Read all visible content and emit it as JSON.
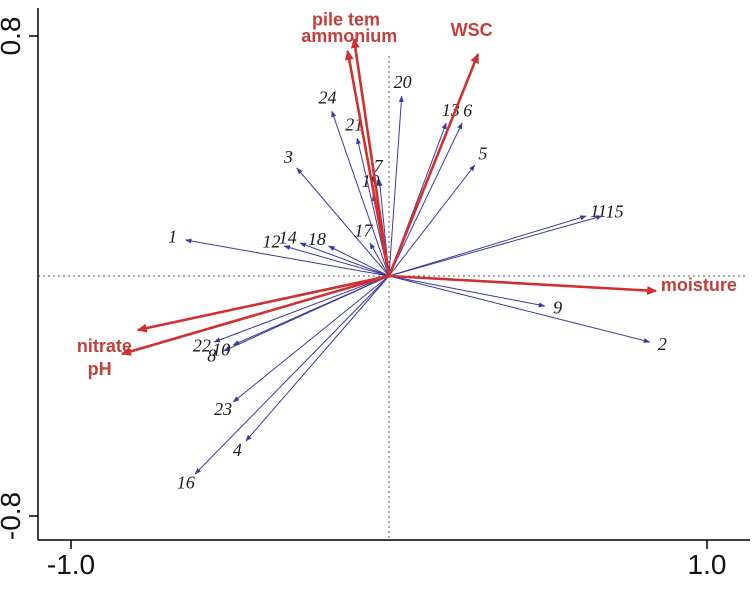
{
  "chart_data": {
    "type": "scatter",
    "subtype": "ordination-biplot",
    "title": "",
    "xlabel": "",
    "ylabel": "",
    "xlim": [
      -1.0,
      1.0
    ],
    "ylim": [
      -0.8,
      0.8
    ],
    "grid": false,
    "zero_lines": "dotted",
    "x_ticks": [
      {
        "value": -1.0,
        "label": "-1.0"
      },
      {
        "value": 1.0,
        "label": "1.0"
      }
    ],
    "y_ticks": [
      {
        "value": 0.8,
        "label": "0.8"
      },
      {
        "value": -0.8,
        "label": "-0.8"
      }
    ],
    "env_color": "#d03030",
    "env_label_color": "#c0403d",
    "sample_color": "#3a3a9c",
    "sample_label_color": "#1a1a1a",
    "axis_color": "#000000",
    "env_arrows": [
      {
        "label": "pile tem",
        "x": -0.11,
        "y": 0.79,
        "label_x": -0.135,
        "label_y": 0.835,
        "anchor": "middle"
      },
      {
        "label": "ammonium",
        "x": -0.13,
        "y": 0.75,
        "label_x": -0.125,
        "label_y": 0.78,
        "anchor": "middle"
      },
      {
        "label": "WSC",
        "x": 0.28,
        "y": 0.74,
        "label_x": 0.26,
        "label_y": 0.8,
        "anchor": "middle"
      },
      {
        "label": "moisture",
        "x": 0.84,
        "y": -0.05,
        "label_x": 0.855,
        "label_y": -0.05,
        "anchor": "start"
      },
      {
        "label": "nitrate",
        "x": -0.79,
        "y": -0.18,
        "label_x": -0.895,
        "label_y": -0.253,
        "anchor": "middle"
      },
      {
        "label": "pH",
        "x": -0.84,
        "y": -0.26,
        "label_x": -0.91,
        "label_y": -0.33,
        "anchor": "middle"
      }
    ],
    "sample_arrows": [
      {
        "label": "1",
        "x": -0.64,
        "y": 0.12
      },
      {
        "label": "2",
        "x": 0.82,
        "y": -0.22
      },
      {
        "label": "3",
        "x": -0.29,
        "y": 0.36
      },
      {
        "label": "4",
        "x": -0.45,
        "y": -0.55
      },
      {
        "label": "5",
        "x": 0.27,
        "y": 0.37
      },
      {
        "label": "6",
        "x": 0.23,
        "y": 0.51
      },
      {
        "label": "7",
        "x": -0.03,
        "y": 0.32
      },
      {
        "label": "8",
        "x": -0.52,
        "y": -0.25
      },
      {
        "label": "9",
        "x": 0.49,
        "y": -0.1
      },
      {
        "label": "10",
        "x": -0.49,
        "y": -0.23
      },
      {
        "label": "11",
        "x": 0.62,
        "y": 0.2
      },
      {
        "label": "12",
        "x": -0.33,
        "y": 0.1
      },
      {
        "label": "13",
        "x": 0.18,
        "y": 0.51
      },
      {
        "label": "14",
        "x": -0.28,
        "y": 0.11
      },
      {
        "label": "15",
        "x": 0.67,
        "y": 0.2
      },
      {
        "label": "16",
        "x": -0.61,
        "y": -0.66
      },
      {
        "label": "17",
        "x": -0.06,
        "y": 0.11
      },
      {
        "label": "18",
        "x": -0.19,
        "y": 0.1
      },
      {
        "label": "19",
        "x": -0.05,
        "y": 0.27
      },
      {
        "label": "20",
        "x": 0.04,
        "y": 0.6
      },
      {
        "label": "21",
        "x": -0.1,
        "y": 0.46
      },
      {
        "label": "22",
        "x": -0.55,
        "y": -0.22
      },
      {
        "label": "23",
        "x": -0.49,
        "y": -0.42
      },
      {
        "label": "24",
        "x": -0.18,
        "y": 0.55
      }
    ]
  }
}
